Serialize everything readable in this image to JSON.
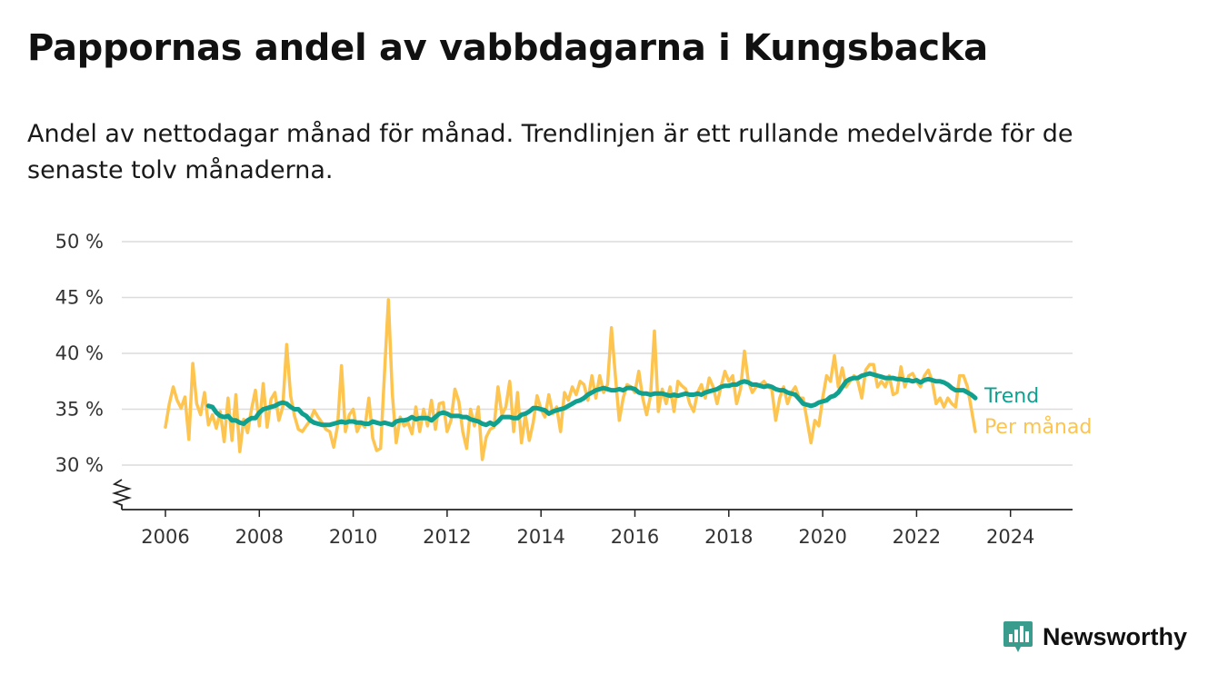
{
  "header": {
    "title": "Pappornas andel av vabbdagarna i Kungsbacka",
    "subtitle": "Andel av nettodagar månad för månad. Trendlinjen är ett rullande medelvärde för de senaste tolv månaderna."
  },
  "brand": {
    "name": "Newsworthy",
    "icon": "newsworthy-logo-icon",
    "color": "#3a9c8c"
  },
  "colors": {
    "trend": "#10a08f",
    "monthly": "#fdc44f",
    "grid": "#dcdcdc",
    "axis": "#333333"
  },
  "chart_data": {
    "type": "line",
    "title": "",
    "xlabel": "",
    "ylabel": "",
    "x_start": "2006-01",
    "x_ticks": [
      "2006",
      "2008",
      "2010",
      "2012",
      "2014",
      "2016",
      "2018",
      "2020",
      "2022",
      "2024"
    ],
    "y_ticks": [
      "30 %",
      "35 %",
      "40 %",
      "45 %",
      "50 %"
    ],
    "ylim": [
      26,
      50
    ],
    "y_axis_break": true,
    "grid": true,
    "legend": "inline labels at line ends",
    "series": [
      {
        "name": "Trend",
        "start": "2006-12",
        "values": [
          35.3,
          35.2,
          34.7,
          34.4,
          34.3,
          34.4,
          34.0,
          34.0,
          33.8,
          33.7,
          34.0,
          34.2,
          34.2,
          34.7,
          35.0,
          35.1,
          35.2,
          35.3,
          35.5,
          35.6,
          35.5,
          35.2,
          35.0,
          35.0,
          34.6,
          34.4,
          34.0,
          33.8,
          33.7,
          33.6,
          33.6,
          33.6,
          33.7,
          33.8,
          33.9,
          33.8,
          33.9,
          33.9,
          33.8,
          33.8,
          33.7,
          33.7,
          33.9,
          33.8,
          33.7,
          33.8,
          33.7,
          33.6,
          33.9,
          34.0,
          34.0,
          34.1,
          34.3,
          34.1,
          34.2,
          34.2,
          34.2,
          34.0,
          34.3,
          34.6,
          34.7,
          34.6,
          34.4,
          34.4,
          34.4,
          34.3,
          34.3,
          34.1,
          34.0,
          33.9,
          33.7,
          33.6,
          33.8,
          33.6,
          33.9,
          34.3,
          34.3,
          34.3,
          34.2,
          34.2,
          34.5,
          34.6,
          34.8,
          35.1,
          35.1,
          35.0,
          34.9,
          34.6,
          34.8,
          34.9,
          35.0,
          35.1,
          35.3,
          35.5,
          35.7,
          35.8,
          36.0,
          36.3,
          36.5,
          36.7,
          36.8,
          36.9,
          36.8,
          36.7,
          36.7,
          36.8,
          36.7,
          36.9,
          36.9,
          36.8,
          36.5,
          36.4,
          36.4,
          36.3,
          36.4,
          36.4,
          36.4,
          36.3,
          36.2,
          36.3,
          36.2,
          36.3,
          36.4,
          36.3,
          36.3,
          36.4,
          36.3,
          36.5,
          36.6,
          36.7,
          36.8,
          37.0,
          37.1,
          37.1,
          37.2,
          37.2,
          37.4,
          37.5,
          37.4,
          37.2,
          37.2,
          37.1,
          37.0,
          37.1,
          37.0,
          36.8,
          36.7,
          36.7,
          36.5,
          36.4,
          36.3,
          35.9,
          35.5,
          35.4,
          35.3,
          35.4,
          35.6,
          35.7,
          35.8,
          36.1,
          36.2,
          36.5,
          37.0,
          37.5,
          37.7,
          37.8,
          37.8,
          38.0,
          38.1,
          38.2,
          38.1,
          38.0,
          37.9,
          37.8,
          37.8,
          37.8,
          37.7,
          37.7,
          37.6,
          37.6,
          37.5,
          37.6,
          37.4,
          37.6,
          37.7,
          37.6,
          37.5,
          37.5,
          37.4,
          37.2,
          36.9,
          36.7,
          36.7,
          36.7,
          36.5,
          36.3,
          36.0
        ]
      },
      {
        "name": "Per månad",
        "start": "2006-01",
        "values": [
          33.4,
          35.5,
          37.0,
          35.8,
          35.1,
          36.1,
          32.3,
          39.1,
          35.5,
          34.5,
          36.5,
          33.6,
          34.5,
          33.3,
          34.8,
          32.1,
          36.0,
          32.2,
          36.3,
          31.2,
          34.1,
          32.9,
          35.0,
          36.7,
          33.5,
          37.3,
          33.4,
          35.9,
          36.5,
          34.0,
          35.2,
          40.8,
          36.2,
          34.4,
          33.2,
          33.0,
          33.5,
          34.0,
          34.9,
          34.3,
          33.8,
          33.2,
          33.0,
          31.6,
          33.5,
          38.9,
          33.0,
          34.5,
          35.0,
          33.0,
          33.8,
          33.4,
          36.0,
          32.4,
          31.3,
          31.5,
          38.2,
          44.8,
          36.4,
          32.0,
          34.3,
          33.5,
          33.8,
          32.8,
          35.2,
          33.0,
          35.0,
          33.5,
          35.8,
          33.2,
          35.5,
          35.6,
          33.0,
          34.0,
          36.8,
          35.7,
          33.0,
          31.5,
          35.0,
          33.5,
          35.2,
          30.5,
          32.5,
          33.2,
          33.4,
          37.0,
          34.5,
          35.2,
          37.5,
          33.0,
          36.5,
          32.0,
          34.5,
          32.2,
          33.8,
          36.2,
          35.0,
          34.3,
          36.3,
          34.6,
          35.2,
          33.0,
          36.5,
          35.8,
          37.0,
          36.3,
          37.5,
          37.2,
          35.8,
          38.0,
          36.0,
          38.0,
          36.5,
          37.2,
          42.3,
          38.0,
          34.0,
          36.0,
          37.2,
          37.0,
          36.5,
          38.4,
          36.0,
          34.5,
          36.2,
          42.0,
          34.8,
          36.8,
          35.5,
          37.0,
          34.8,
          37.5,
          37.1,
          36.8,
          35.5,
          34.8,
          36.5,
          37.2,
          36.0,
          37.8,
          37.0,
          35.5,
          37.0,
          38.4,
          37.5,
          38.0,
          35.5,
          36.8,
          40.2,
          37.5,
          36.5,
          37.0,
          37.2,
          37.5,
          37.0,
          36.8,
          34.0,
          36.0,
          37.0,
          35.5,
          36.5,
          37.0,
          36.0,
          36.0,
          34.0,
          32.0,
          34.0,
          33.5,
          36.0,
          38.0,
          37.5,
          39.8,
          37.0,
          38.7,
          37.0,
          37.5,
          38.0,
          37.5,
          36.0,
          38.5,
          39.0,
          39.0,
          37.0,
          37.5,
          37.0,
          38.0,
          36.3,
          36.5,
          38.8,
          37.0,
          38.0,
          38.2,
          37.5,
          37.0,
          38.0,
          38.5,
          37.5,
          35.5,
          36.0,
          35.2,
          36.0,
          35.5,
          35.2,
          38.0,
          38.0,
          37.0,
          35.0,
          33.0
        ]
      }
    ]
  }
}
